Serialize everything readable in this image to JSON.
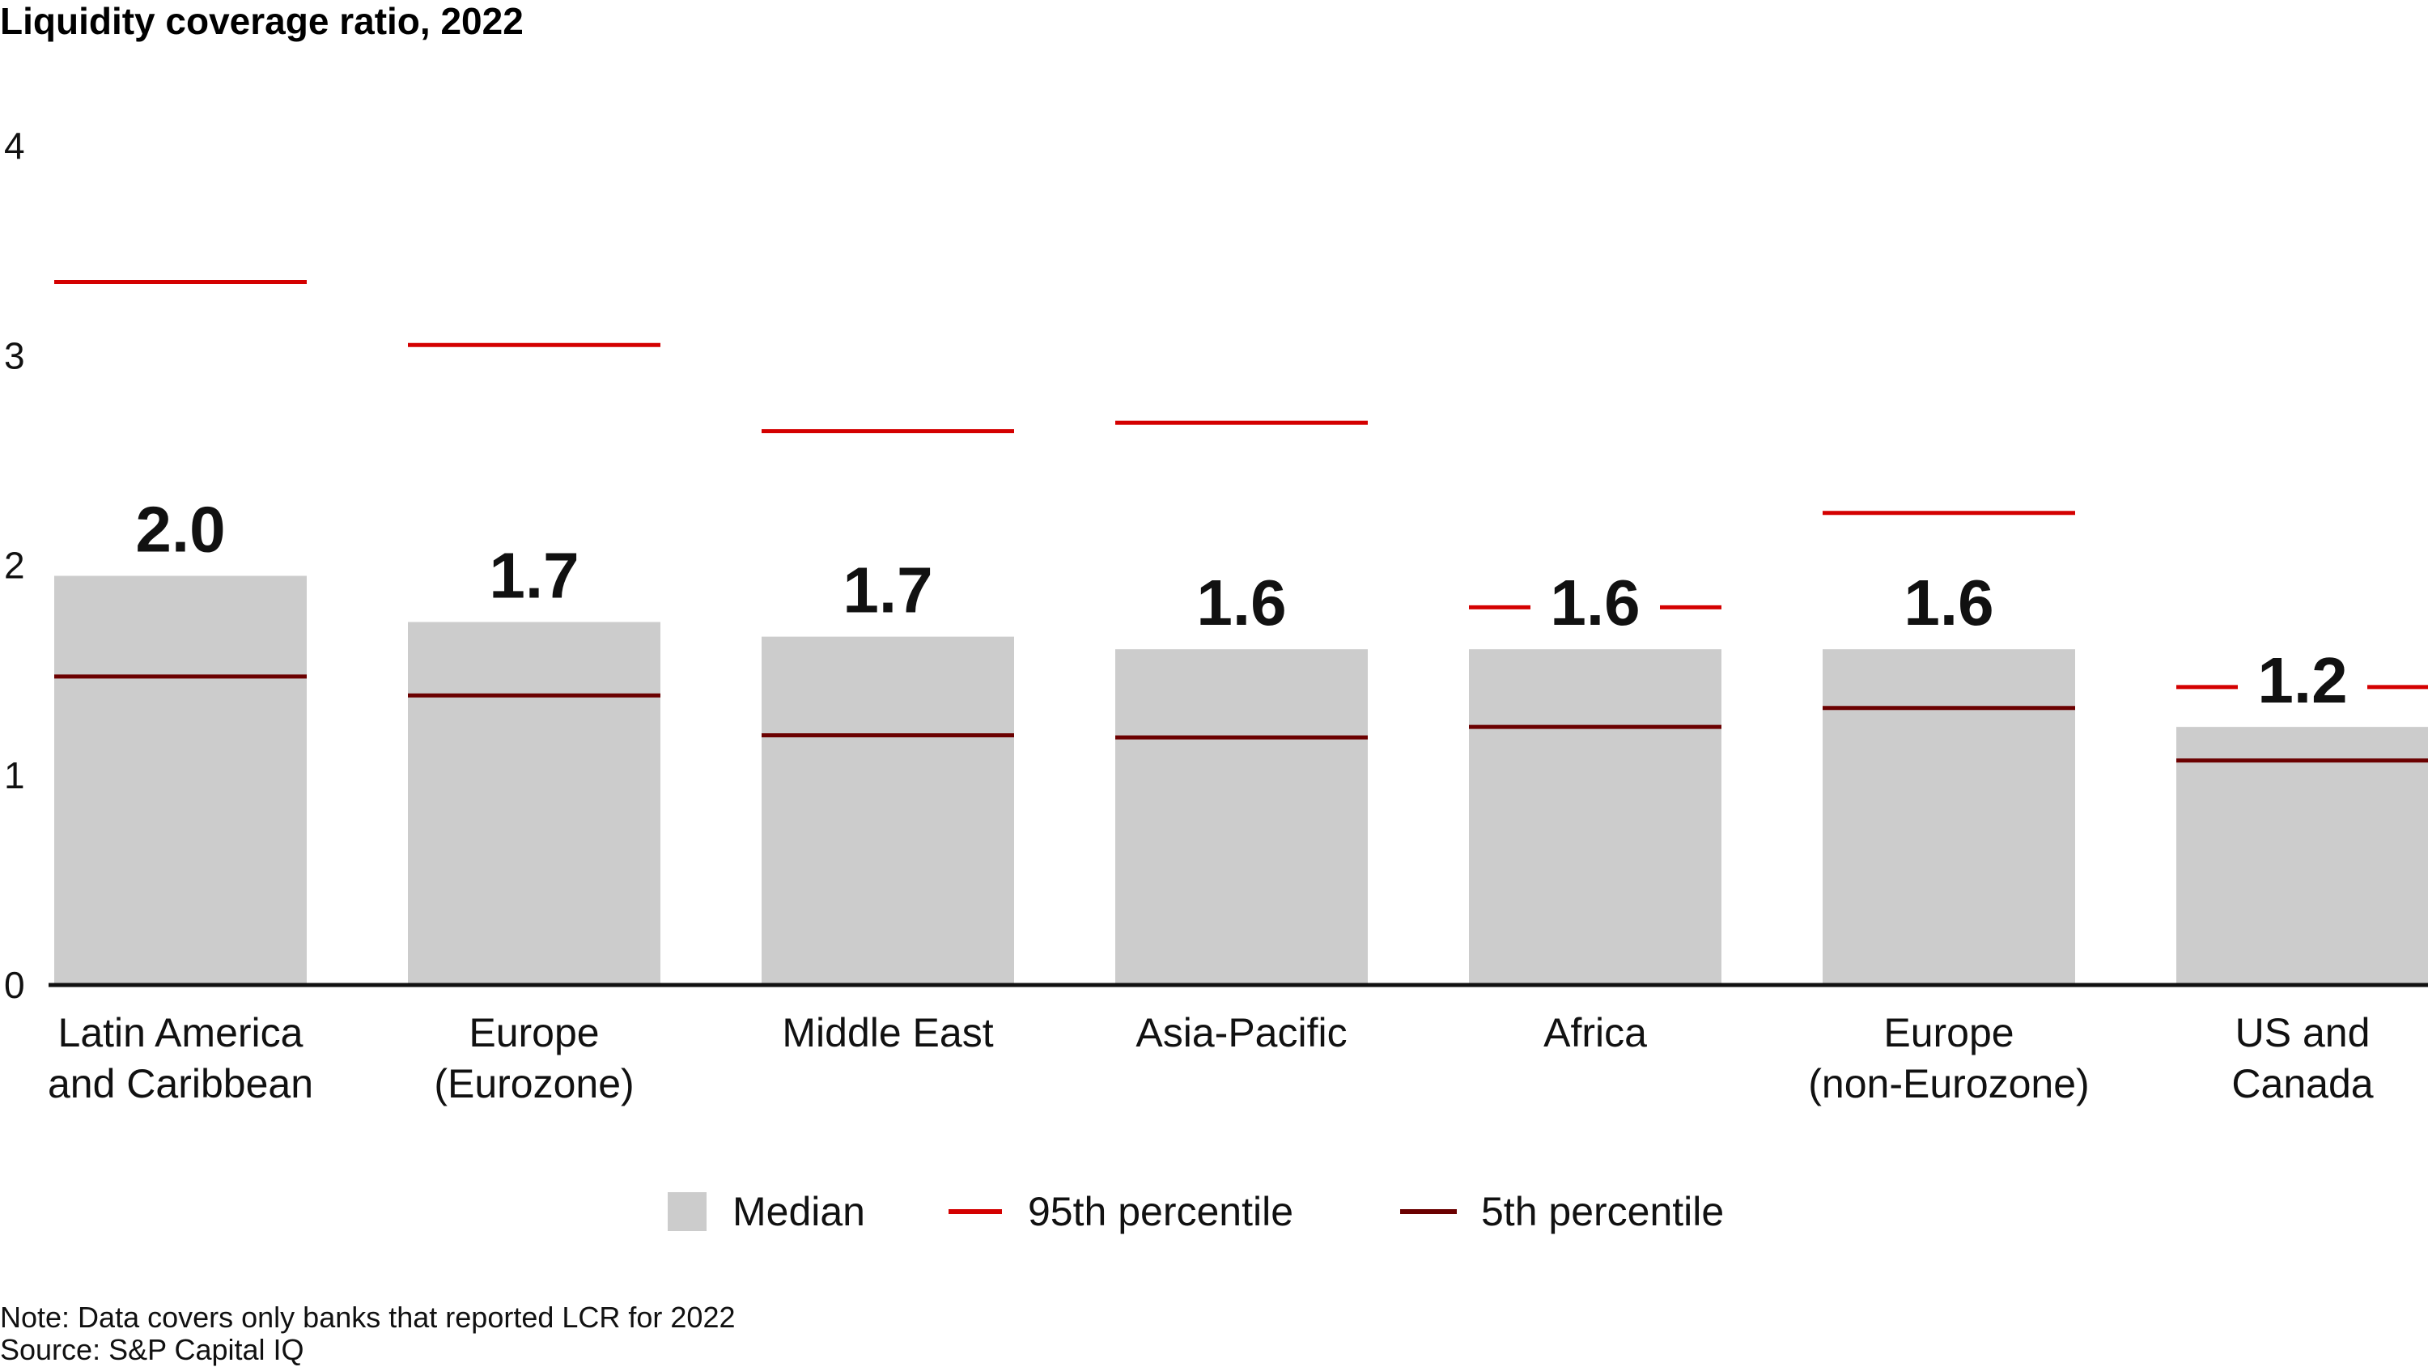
{
  "chart_data": {
    "type": "bar",
    "title": "Liquidity coverage ratio, 2022",
    "categories": [
      [
        "Latin America",
        "and  Caribbean"
      ],
      [
        "Europe",
        "(Eurozone)"
      ],
      [
        "Middle East"
      ],
      [
        "Asia-Pacific"
      ],
      [
        "Africa"
      ],
      [
        "Europe",
        "(non-Eurozone)"
      ],
      [
        "US and",
        "Canada"
      ]
    ],
    "series": [
      {
        "name": "Median",
        "values": [
          2.0,
          1.7,
          1.7,
          1.6,
          1.6,
          1.6,
          1.2
        ],
        "labels": [
          "2.0",
          "1.7",
          "1.7",
          "1.6",
          "1.6",
          "1.6",
          "1.2"
        ],
        "color": "#cccccc"
      },
      {
        "name": "95th percentile",
        "values": [
          3.35,
          3.05,
          2.64,
          2.68,
          1.8,
          2.25,
          1.42
        ],
        "color": "#d40000"
      },
      {
        "name": "5th percentile",
        "values": [
          1.47,
          1.38,
          1.19,
          1.18,
          1.23,
          1.32,
          1.07
        ],
        "color": "#6b0000"
      }
    ],
    "median_exact": [
      1.95,
      1.73,
      1.66,
      1.6,
      1.6,
      1.6,
      1.23
    ],
    "yticks": [
      "0",
      "1",
      "2",
      "3",
      "4"
    ],
    "ylim": [
      0,
      4
    ],
    "grid": false,
    "legend_position": "bottom-center",
    "note": "Note: Data covers only banks that reported LCR for 2022",
    "source": "Source: S&P Capital IQ"
  }
}
